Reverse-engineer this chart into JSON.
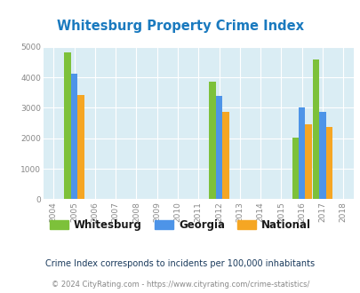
{
  "title": "Whitesburg Property Crime Index",
  "title_color": "#1a7abf",
  "years": [
    2004,
    2005,
    2006,
    2007,
    2008,
    2009,
    2010,
    2011,
    2012,
    2013,
    2014,
    2015,
    2016,
    2017,
    2018
  ],
  "data_points": {
    "2005": [
      4820,
      4130,
      3430
    ],
    "2012": [
      3870,
      3380,
      2880
    ],
    "2016": [
      2020,
      3000,
      2450
    ],
    "2017": [
      4600,
      2870,
      2360
    ]
  },
  "whitesburg_color": "#7dc13a",
  "georgia_color": "#4d94e8",
  "national_color": "#f5a623",
  "ylim": [
    0,
    5000
  ],
  "yticks": [
    0,
    1000,
    2000,
    3000,
    4000,
    5000
  ],
  "bg_color": "#daedf4",
  "bar_width": 0.32,
  "legend_labels": [
    "Whitesburg",
    "Georgia",
    "National"
  ],
  "legend_text_color": "#1a1a1a",
  "footnote1": "Crime Index corresponds to incidents per 100,000 inhabitants",
  "footnote2": "© 2024 CityRating.com - https://www.cityrating.com/crime-statistics/",
  "footnote1_color": "#1a3a5c",
  "footnote2_color": "#888888",
  "tick_color": "#888888",
  "grid_color": "#ffffff",
  "x_min": 2004,
  "x_max": 2018
}
